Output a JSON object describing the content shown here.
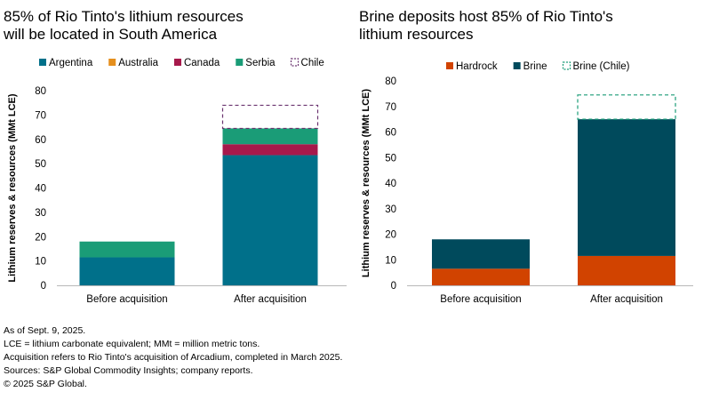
{
  "chart_data": [
    {
      "type": "bar",
      "stacked": true,
      "title": "85% of Rio Tinto's lithium resources\nwill be located in South America",
      "xlabel": "",
      "ylabel": "Lithium reserves & resources (MMt LCE)",
      "ylim": [
        0,
        80
      ],
      "yticks": [
        0,
        10,
        20,
        30,
        40,
        50,
        60,
        70,
        80
      ],
      "grid": false,
      "legend": "top",
      "categories": [
        "Before acquisition",
        "After acquisition"
      ],
      "series": [
        {
          "name": "Argentina",
          "color": "#00708a",
          "values": [
            11.5,
            53.5
          ]
        },
        {
          "name": "Australia",
          "color": "#e58f1d",
          "values": [
            0,
            0
          ]
        },
        {
          "name": "Canada",
          "color": "#a6194b",
          "values": [
            0,
            4.5
          ]
        },
        {
          "name": "Serbia",
          "color": "#1a9c77",
          "values": [
            6.5,
            6.5
          ]
        },
        {
          "name": "Chile",
          "color": "#6b3470",
          "dashed": true,
          "values": [
            0,
            9.5
          ]
        }
      ]
    },
    {
      "type": "bar",
      "stacked": true,
      "title": "Brine deposits host 85% of Rio Tinto's\nlithium resources",
      "xlabel": "",
      "ylabel": "Lithium reserves & resources (MMt LCE)",
      "ylim": [
        0,
        80
      ],
      "yticks": [
        0,
        10,
        20,
        30,
        40,
        50,
        60,
        70,
        80
      ],
      "grid": false,
      "legend": "top",
      "categories": [
        "Before acquisition",
        "After acquisition"
      ],
      "series": [
        {
          "name": "Hardrock",
          "color": "#d14300",
          "values": [
            6.5,
            11.5
          ]
        },
        {
          "name": "Brine",
          "color": "#004a5c",
          "values": [
            11.5,
            53.5
          ]
        },
        {
          "name": "Brine (Chile)",
          "color": "#1a9c77",
          "dashed": true,
          "values": [
            0,
            9.5
          ]
        }
      ]
    }
  ],
  "footer": {
    "lines": [
      "As of Sept. 9, 2025.",
      "LCE = lithium carbonate equivalent; MMt = million metric tons.",
      "Acquisition refers to Rio Tinto's acquisition of Arcadium, completed in March 2025.",
      "Sources: S&P Global Commodity Insights; company reports.",
      "© 2025 S&P Global."
    ]
  }
}
